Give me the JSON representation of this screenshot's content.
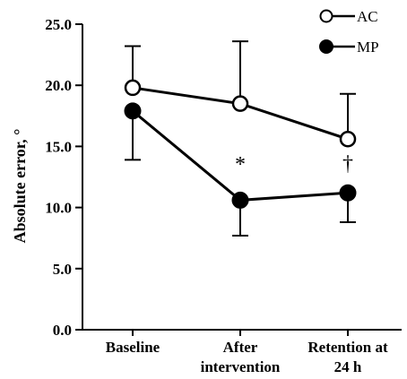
{
  "chart_data": {
    "type": "line",
    "categories": [
      "Baseline",
      "After intervention",
      "Retention at 24 h"
    ],
    "category_lines": [
      [
        "Baseline"
      ],
      [
        "After",
        "intervention"
      ],
      [
        "Retention at",
        "24 h"
      ]
    ],
    "ylabel": "Absolute error, °",
    "ylim": [
      0,
      25
    ],
    "yticks": [
      "0.0",
      "5.0",
      "10.0",
      "15.0",
      "20.0",
      "25.0"
    ],
    "series": [
      {
        "name": "AC",
        "marker": "open-circle",
        "values": [
          19.8,
          18.5,
          15.6
        ],
        "error_upper": [
          23.2,
          23.6,
          19.3
        ]
      },
      {
        "name": "MP",
        "marker": "filled-circle",
        "values": [
          17.9,
          10.6,
          11.2
        ],
        "error_lower": [
          13.9,
          7.7,
          8.8
        ]
      }
    ],
    "annotations": [
      {
        "text": "*",
        "category": "After intervention"
      },
      {
        "text": "†",
        "category": "Retention at 24 h"
      }
    ],
    "legend_position": "top-right",
    "grid": false,
    "colors": {
      "line": "#000000",
      "background": "#ffffff"
    }
  }
}
